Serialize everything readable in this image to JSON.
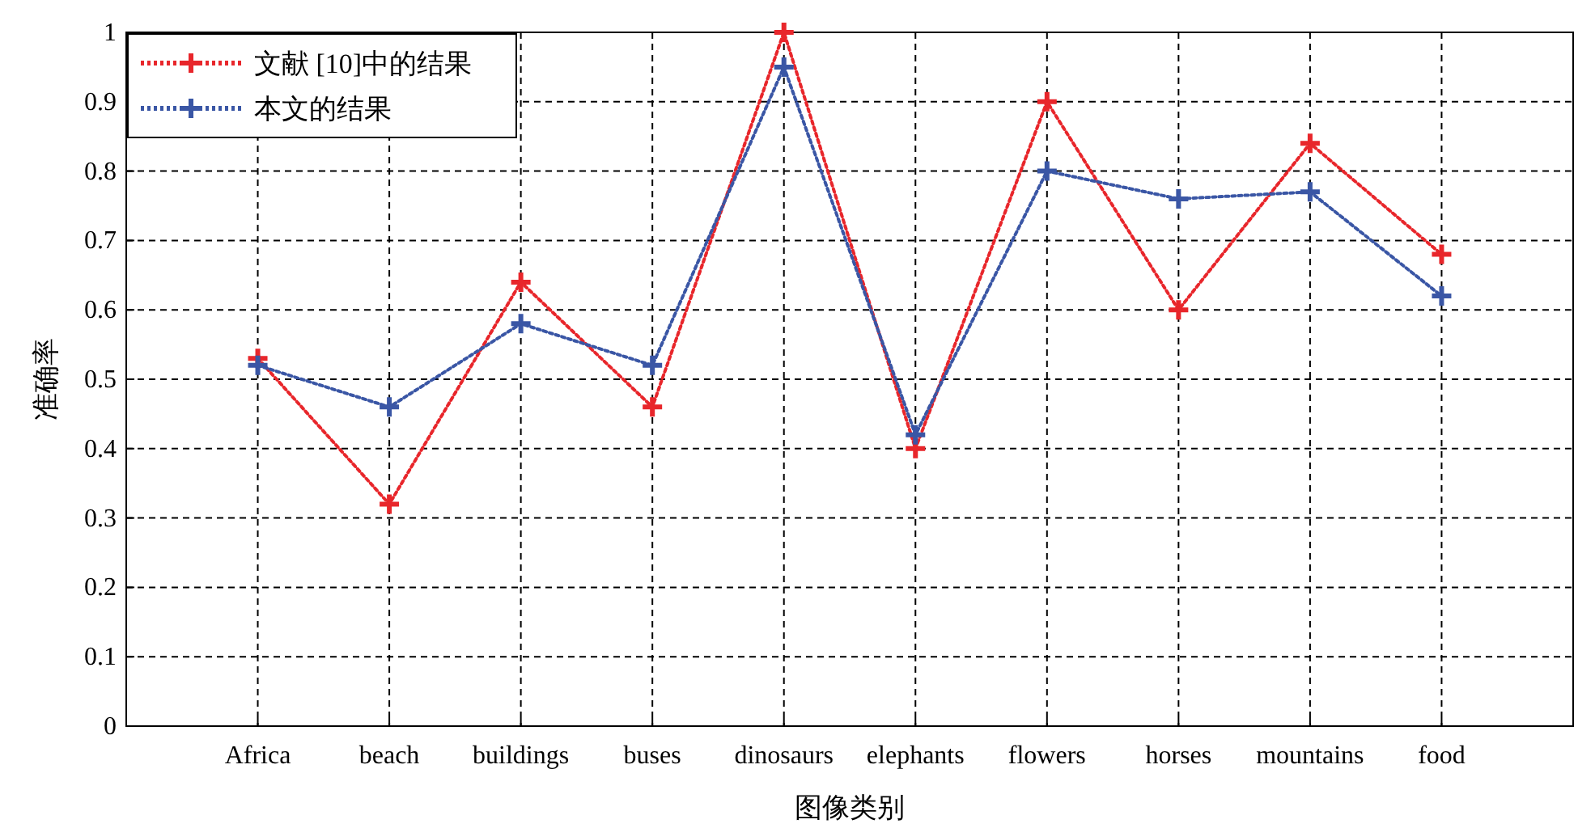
{
  "chart_data": {
    "type": "line",
    "xlabel": "图像类别",
    "ylabel": "准确率",
    "categories": [
      "Africa",
      "beach",
      "buildings",
      "buses",
      "dinosaurs",
      "elephants",
      "flowers",
      "horses",
      "mountains",
      "food"
    ],
    "series": [
      {
        "name": "文献 [10]中的结果",
        "color": "#e8262b",
        "values": [
          0.53,
          0.32,
          0.64,
          0.46,
          1.0,
          0.4,
          0.9,
          0.6,
          0.84,
          0.68
        ]
      },
      {
        "name": "本文的结果",
        "color": "#3a56a5",
        "values": [
          0.52,
          0.46,
          0.58,
          0.52,
          0.95,
          0.42,
          0.8,
          0.76,
          0.77,
          0.62
        ]
      }
    ],
    "ylim": [
      0,
      1
    ],
    "yticks": [
      0,
      0.1,
      0.2,
      0.3,
      0.4,
      0.5,
      0.6,
      0.7,
      0.8,
      0.9,
      1
    ],
    "grid": true,
    "legend": "top left",
    "marker": "cross",
    "line_style": "dotted"
  }
}
